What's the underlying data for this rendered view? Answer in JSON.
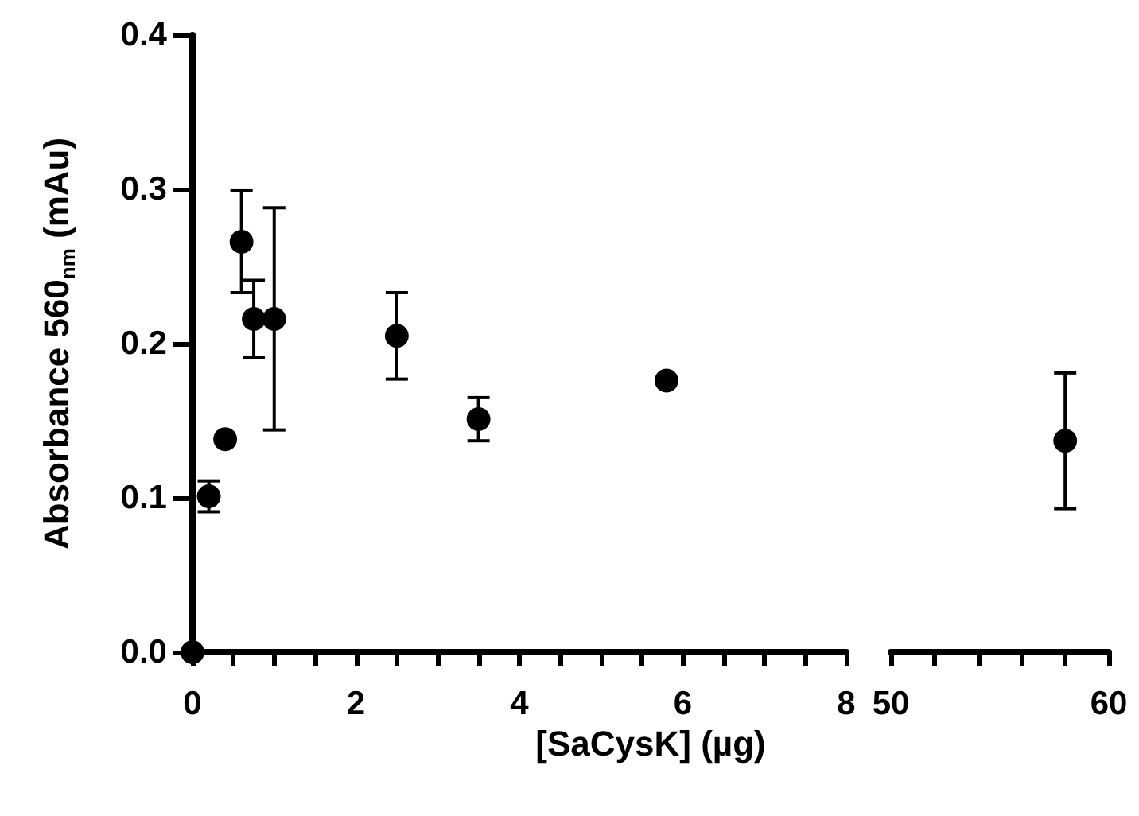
{
  "chart_data": [
    {
      "type": "scatter",
      "ylabel": "Absorbance 560$_{nm}$ (mAu)",
      "xlabel": "[SaCysK] (µg)",
      "marker": "circle",
      "color": "#000000",
      "x": [
        0,
        0.2,
        0.4,
        0.6,
        0.75,
        1.0,
        2.5,
        3.5,
        5.8
      ],
      "values": [
        0,
        0.101,
        0.138,
        0.266,
        0.216,
        0.216,
        0.205,
        0.151,
        0.176
      ],
      "errors": [
        null,
        0.01,
        null,
        0.033,
        0.025,
        0.072,
        0.028,
        0.014,
        null
      ],
      "xlim": [
        0,
        8
      ],
      "xticks": [
        0,
        {
          "value": 0.5,
          "label": null
        },
        {
          "value": 1,
          "label": null
        },
        {
          "value": 1.5,
          "label": null
        },
        2,
        {
          "value": 2.5,
          "label": null
        },
        {
          "value": 3,
          "label": null
        },
        {
          "value": 3.5,
          "label": null
        },
        4,
        {
          "value": 4.5,
          "label": null
        },
        {
          "value": 5,
          "label": null
        },
        {
          "value": 5.5,
          "label": null
        },
        6,
        {
          "value": 6.5,
          "label": null
        },
        {
          "value": 7,
          "label": null
        },
        {
          "value": 7.5,
          "label": null
        },
        8
      ],
      "ylim": [
        0,
        0.4
      ],
      "yticks": [
        {
          "value": 0,
          "label": "0.0"
        },
        0.1,
        0.2,
        0.3,
        0.4
      ]
    },
    {
      "type": "scatter",
      "marker": "circle",
      "color": "#000000",
      "tick_labels": "x",
      "x": [
        58
      ],
      "values": [
        0.137
      ],
      "errors": [
        0.044
      ],
      "xlim": [
        50,
        60
      ],
      "xticks": [
        50,
        {
          "value": 52,
          "label": null
        },
        {
          "value": 54,
          "label": null
        },
        {
          "value": 56,
          "label": null
        },
        {
          "value": 58,
          "label": null
        },
        60
      ],
      "ylim": [
        0,
        0.4
      ]
    }
  ]
}
